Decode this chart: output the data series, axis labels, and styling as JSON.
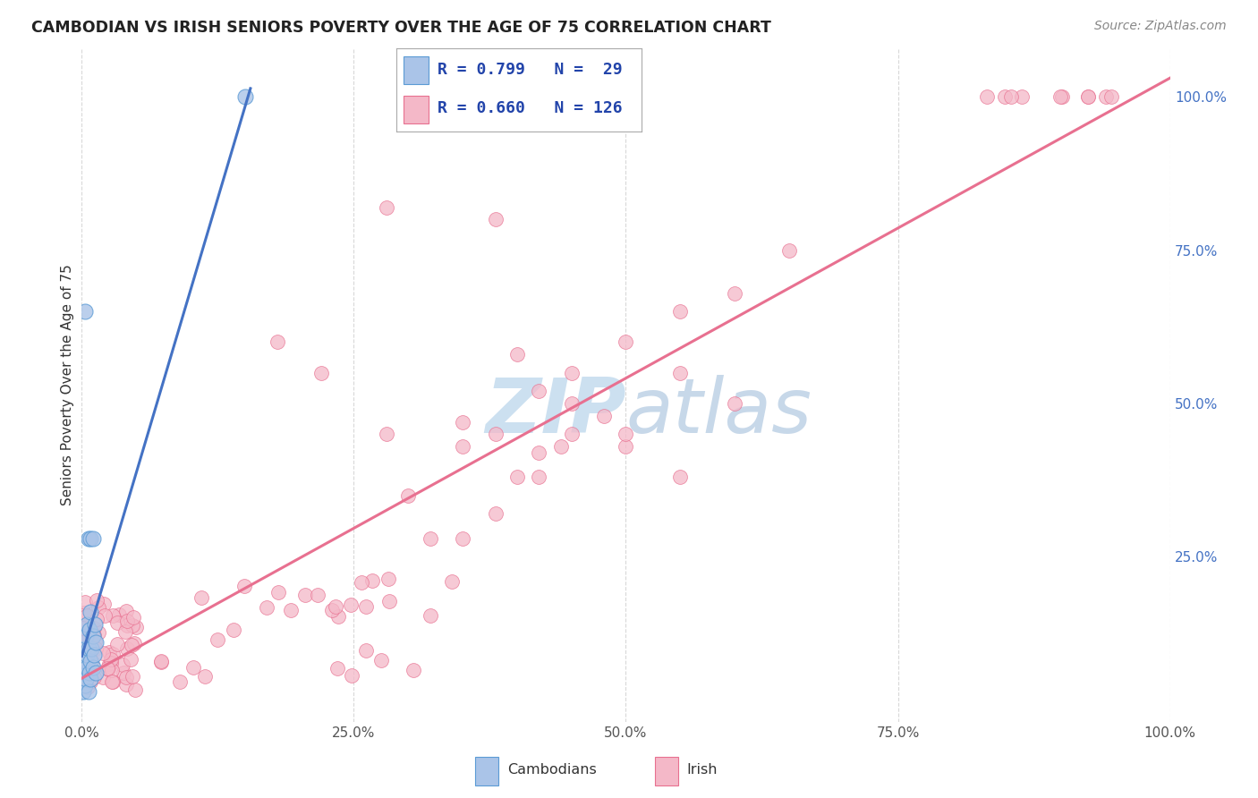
{
  "title": "CAMBODIAN VS IRISH SENIORS POVERTY OVER THE AGE OF 75 CORRELATION CHART",
  "source": "Source: ZipAtlas.com",
  "ylabel": "Seniors Poverty Over the Age of 75",
  "background_color": "#ffffff",
  "grid_color": "#d8d8d8",
  "cambodian_fill": "#aac4e8",
  "cambodian_edge": "#5b9bd5",
  "irish_fill": "#f4b8c8",
  "irish_edge": "#e87090",
  "cambodian_line_color": "#4472c4",
  "irish_line_color": "#e87090",
  "cambodian_R": 0.799,
  "cambodian_N": 29,
  "irish_R": 0.66,
  "irish_N": 126,
  "xmin": 0.0,
  "xmax": 1.0,
  "ymin": -0.02,
  "ymax": 1.08,
  "xtick_values": [
    0.0,
    0.25,
    0.5,
    0.75,
    1.0
  ],
  "xtick_labels": [
    "0.0%",
    "25.0%",
    "50.0%",
    "75.0%",
    "100.0%"
  ],
  "right_ytick_values": [
    0.25,
    0.5,
    0.75,
    1.0
  ],
  "right_ytick_labels": [
    "25.0%",
    "50.0%",
    "75.0%",
    "100.0%"
  ],
  "watermark_text": "ZIPatlas",
  "watermark_color": "#cce0f0",
  "legend_R1": "R = 0.799   N =  29",
  "legend_R2": "R = 0.660   N = 126",
  "legend_color": "#2244aa"
}
